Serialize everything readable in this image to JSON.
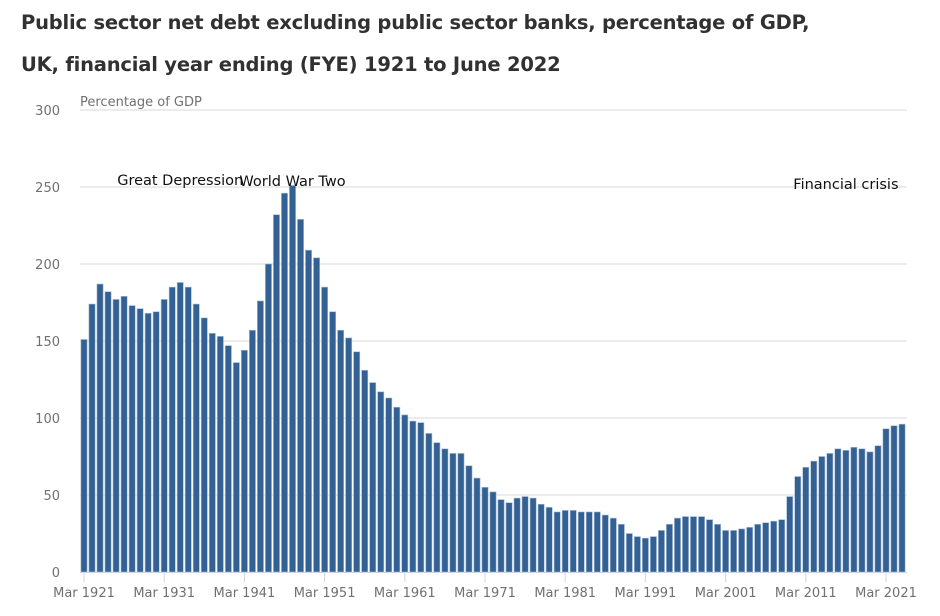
{
  "chart_data": {
    "type": "bar",
    "title": "Public sector net debt excluding public sector banks, percentage of GDP,",
    "subtitle": "UK, financial year ending (FYE) 1921 to June 2022",
    "xlabel": "",
    "ylabel": "Percentage of GDP",
    "ylim": [
      0,
      300
    ],
    "yticks": [
      "0",
      "50",
      "100",
      "150",
      "200",
      "250",
      "300"
    ],
    "xtick_labels": [
      "Mar 1921",
      "Mar 1931",
      "Mar 1941",
      "Mar 1951",
      "Mar 1961",
      "Mar 1971",
      "Mar 1981",
      "Mar 1991",
      "Mar 2001",
      "Mar 2011",
      "Mar 2021"
    ],
    "grid": true,
    "bar_color": "#336193",
    "annotations": [
      {
        "text": "Great Depression",
        "x": "Mar 1933"
      },
      {
        "text": "World War Two",
        "x": "Mar 1947"
      },
      {
        "text": "Financial crisis",
        "x": "Mar 2016"
      }
    ],
    "categories": [
      "Mar 1921",
      "Mar 1922",
      "Mar 1923",
      "Mar 1924",
      "Mar 1925",
      "Mar 1926",
      "Mar 1927",
      "Mar 1928",
      "Mar 1929",
      "Mar 1930",
      "Mar 1931",
      "Mar 1932",
      "Mar 1933",
      "Mar 1934",
      "Mar 1935",
      "Mar 1936",
      "Mar 1937",
      "Mar 1938",
      "Mar 1939",
      "Mar 1940",
      "Mar 1941",
      "Mar 1942",
      "Mar 1943",
      "Mar 1944",
      "Mar 1945",
      "Mar 1946",
      "Mar 1947",
      "Mar 1948",
      "Mar 1949",
      "Mar 1950",
      "Mar 1951",
      "Mar 1952",
      "Mar 1953",
      "Mar 1954",
      "Mar 1955",
      "Mar 1956",
      "Mar 1957",
      "Mar 1958",
      "Mar 1959",
      "Mar 1960",
      "Mar 1961",
      "Mar 1962",
      "Mar 1963",
      "Mar 1964",
      "Mar 1965",
      "Mar 1966",
      "Mar 1967",
      "Mar 1968",
      "Mar 1969",
      "Mar 1970",
      "Mar 1971",
      "Mar 1972",
      "Mar 1973",
      "Mar 1974",
      "Mar 1975",
      "Mar 1976",
      "Mar 1977",
      "Mar 1978",
      "Mar 1979",
      "Mar 1980",
      "Mar 1981",
      "Mar 1982",
      "Mar 1983",
      "Mar 1984",
      "Mar 1985",
      "Mar 1986",
      "Mar 1987",
      "Mar 1988",
      "Mar 1989",
      "Mar 1990",
      "Mar 1991",
      "Mar 1992",
      "Mar 1993",
      "Mar 1994",
      "Mar 1995",
      "Mar 1996",
      "Mar 1997",
      "Mar 1998",
      "Mar 1999",
      "Mar 2000",
      "Mar 2001",
      "Mar 2002",
      "Mar 2003",
      "Mar 2004",
      "Mar 2005",
      "Mar 2006",
      "Mar 2007",
      "Mar 2008",
      "Mar 2009",
      "Mar 2010",
      "Mar 2011",
      "Mar 2012",
      "Mar 2013",
      "Mar 2014",
      "Mar 2015",
      "Mar 2016",
      "Mar 2017",
      "Mar 2018",
      "Mar 2019",
      "Mar 2020",
      "Mar 2021",
      "Mar 2022",
      "Jun 2022"
    ],
    "values": [
      151,
      174,
      187,
      182,
      177,
      179,
      173,
      171,
      168,
      169,
      177,
      185,
      188,
      185,
      174,
      165,
      155,
      153,
      147,
      136,
      144,
      157,
      176,
      200,
      232,
      246,
      251,
      229,
      209,
      204,
      185,
      169,
      157,
      152,
      143,
      131,
      123,
      117,
      113,
      107,
      102,
      98,
      97,
      90,
      84,
      80,
      77,
      77,
      69,
      61,
      55,
      52,
      47,
      45,
      48,
      49,
      48,
      44,
      42,
      39,
      40,
      40,
      39,
      39,
      39,
      37,
      35,
      31,
      25,
      23,
      22,
      23,
      27,
      31,
      35,
      36,
      36,
      36,
      34,
      31,
      27,
      27,
      28,
      29,
      31,
      32,
      33,
      34,
      49,
      62,
      68,
      72,
      75,
      77,
      80,
      79,
      81,
      80,
      78,
      82,
      93,
      95,
      96
    ]
  }
}
